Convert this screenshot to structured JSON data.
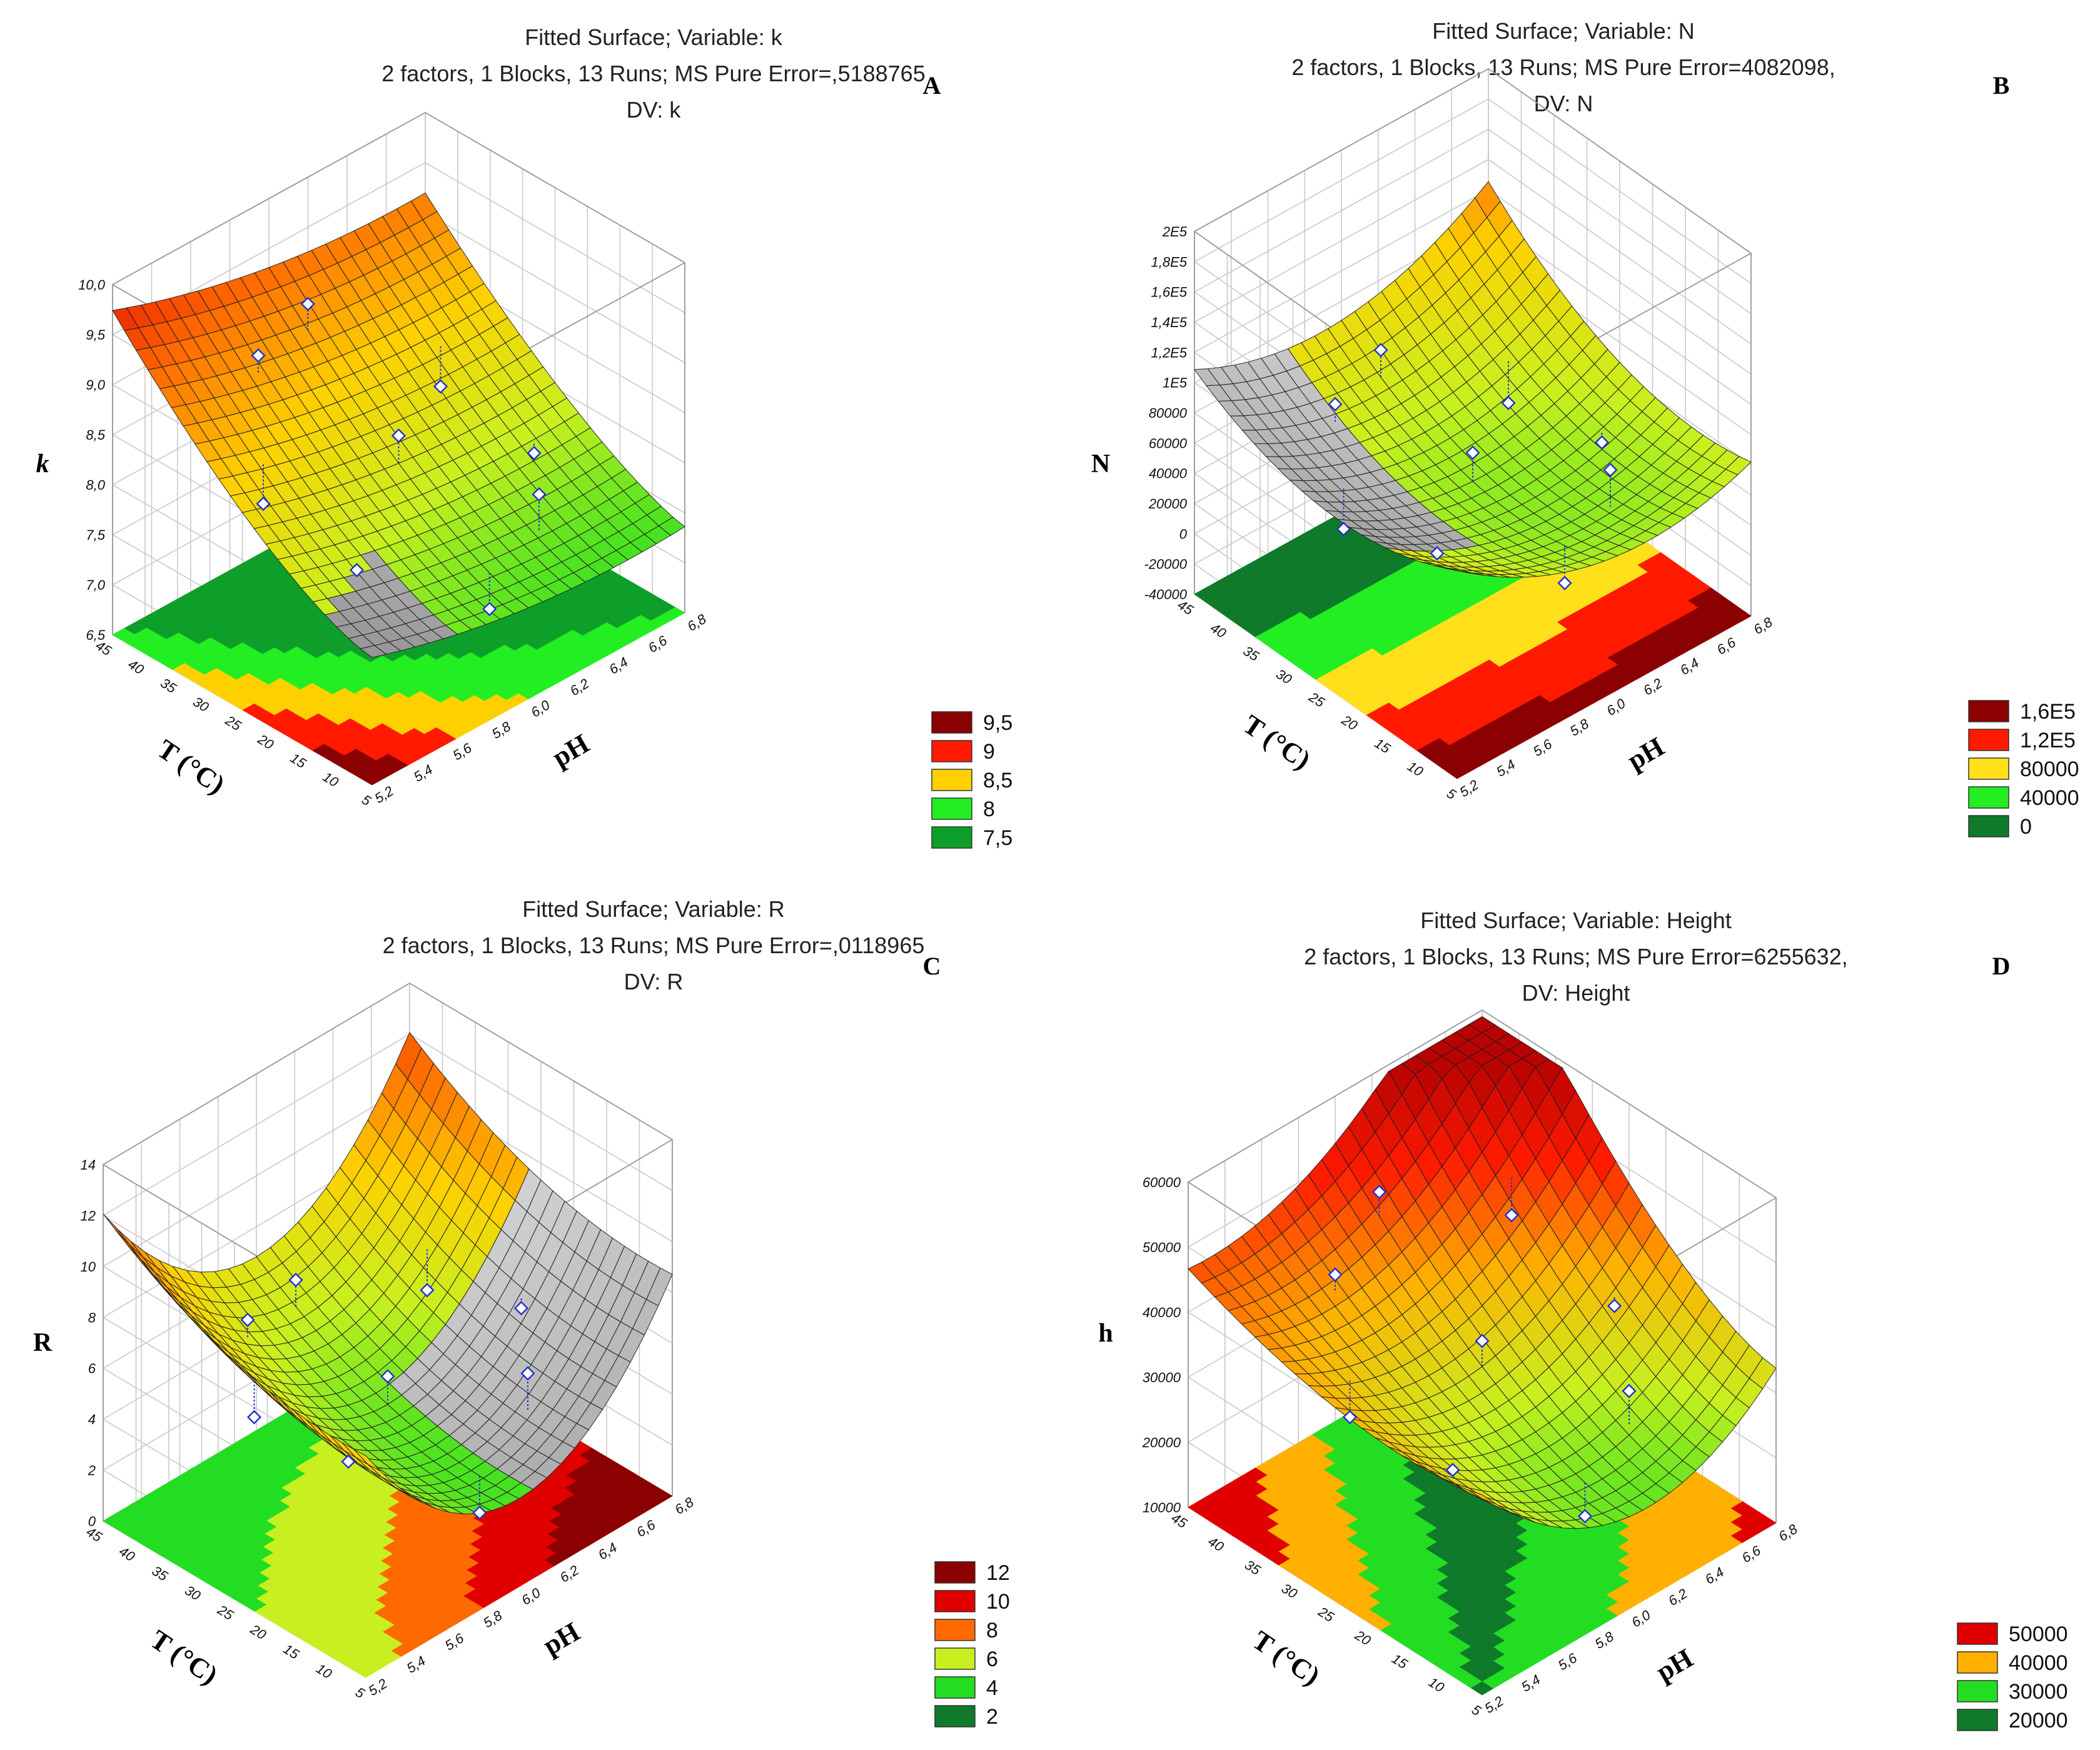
{
  "chart_data": [
    {
      "type": "surface",
      "panel_label": "A",
      "title_lines": [
        "Fitted Surface; Variable: k",
        "2 factors, 1 Blocks, 13 Runs; MS Pure Error=,5188765",
        "DV: k"
      ],
      "zlabel": "k",
      "xlabel": "pH",
      "ylabel": "T (°C)",
      "z_ticks": [
        "6,5",
        "7,0",
        "7,5",
        "8,0",
        "8,5",
        "9,0",
        "9,5",
        "10,0"
      ],
      "x_ticks": [
        "5,2",
        "5,4",
        "5,6",
        "5,8",
        "6,0",
        "6,2",
        "6,4",
        "6,6",
        "6,8"
      ],
      "y_ticks": [
        "5",
        "10",
        "15",
        "20",
        "25",
        "30",
        "35",
        "40",
        "45"
      ],
      "zlim": [
        6.5,
        10.0
      ],
      "legend": [
        {
          "label": "9,5",
          "color": "#8b0000"
        },
        {
          "label": "9",
          "color": "#ff1a00"
        },
        {
          "label": "8,5",
          "color": "#ffd000"
        },
        {
          "label": "8",
          "color": "#22ee22"
        },
        {
          "label": "7,5",
          "color": "#0e9f2a"
        }
      ]
    },
    {
      "type": "surface",
      "panel_label": "B",
      "title_lines": [
        "Fitted Surface; Variable: N",
        "2 factors, 1 Blocks, 13 Runs; MS Pure Error=4082098,",
        "DV: N"
      ],
      "zlabel": "N",
      "xlabel": "pH",
      "ylabel": "T (°C)",
      "z_ticks": [
        "-40000",
        "-20000",
        "0",
        "20000",
        "40000",
        "60000",
        "80000",
        "1E5",
        "1,2E5",
        "1,4E5",
        "1,6E5",
        "1,8E5",
        "2E5"
      ],
      "x_ticks": [
        "5,2",
        "5,4",
        "5,6",
        "5,8",
        "6,0",
        "6,2",
        "6,4",
        "6,6",
        "6,8"
      ],
      "y_ticks": [
        "5",
        "10",
        "15",
        "20",
        "25",
        "30",
        "35",
        "40",
        "45"
      ],
      "zlim": [
        -40000,
        200000
      ],
      "legend": [
        {
          "label": "1,6E5",
          "color": "#8b0000"
        },
        {
          "label": "1,2E5",
          "color": "#ff1a00"
        },
        {
          "label": "80000",
          "color": "#ffe01a"
        },
        {
          "label": "40000",
          "color": "#22ee22"
        },
        {
          "label": "0",
          "color": "#0e7a2a"
        }
      ]
    },
    {
      "type": "surface",
      "panel_label": "C",
      "title_lines": [
        "Fitted Surface; Variable: R",
        "2 factors, 1 Blocks, 13 Runs; MS Pure Error=,0118965",
        "DV: R"
      ],
      "zlabel": "R",
      "xlabel": "pH",
      "ylabel": "T (°C)",
      "z_ticks": [
        "0",
        "2",
        "4",
        "6",
        "8",
        "10",
        "12",
        "14"
      ],
      "x_ticks": [
        "5,2",
        "5,4",
        "5,6",
        "5,8",
        "6,0",
        "6,2",
        "6,4",
        "6,6",
        "6,8"
      ],
      "y_ticks": [
        "5",
        "10",
        "15",
        "20",
        "25",
        "30",
        "35",
        "40",
        "45"
      ],
      "zlim": [
        0,
        14
      ],
      "legend": [
        {
          "label": "12",
          "color": "#8b0000"
        },
        {
          "label": "10",
          "color": "#e00000"
        },
        {
          "label": "8",
          "color": "#ff6a00"
        },
        {
          "label": "6",
          "color": "#c8f020"
        },
        {
          "label": "4",
          "color": "#22dd22"
        },
        {
          "label": "2",
          "color": "#0e7a2a"
        }
      ]
    },
    {
      "type": "surface",
      "panel_label": "D",
      "title_lines": [
        "Fitted Surface; Variable: Height",
        "2 factors, 1 Blocks, 13 Runs; MS Pure Error=6255632,",
        "DV: Height"
      ],
      "zlabel": "h",
      "xlabel": "pH",
      "ylabel": "T (°C)",
      "z_ticks": [
        "10000",
        "20000",
        "30000",
        "40000",
        "50000",
        "60000"
      ],
      "x_ticks": [
        "5,2",
        "5,4",
        "5,6",
        "5,8",
        "6,0",
        "6,2",
        "6,4",
        "6,6",
        "6,8"
      ],
      "y_ticks": [
        "5",
        "10",
        "15",
        "20",
        "25",
        "30",
        "35",
        "40",
        "45"
      ],
      "zlim": [
        5000,
        60000
      ],
      "legend": [
        {
          "label": "50000",
          "color": "#e00000"
        },
        {
          "label": "40000",
          "color": "#ffb000"
        },
        {
          "label": "30000",
          "color": "#22dd22"
        },
        {
          "label": "20000",
          "color": "#0e7a2a"
        }
      ]
    }
  ]
}
